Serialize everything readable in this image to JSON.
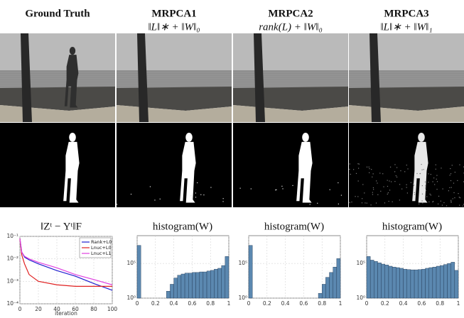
{
  "columns": [
    {
      "title": "Ground Truth"
    },
    {
      "title": "MRPCA1",
      "formula": "‖L‖∗ + ‖W‖₀"
    },
    {
      "title": "MRPCA2",
      "formula": "rank(L) + ‖W‖₀"
    },
    {
      "title": "MRPCA3",
      "formula": "‖L‖∗ + ‖W‖₁"
    }
  ],
  "chart_data": [
    {
      "type": "line",
      "title": "‖Zᵗ − Yᵗ‖F",
      "x_label": "iteration",
      "x": [
        0,
        2,
        5,
        10,
        20,
        40,
        60,
        80,
        100
      ],
      "series": [
        {
          "name": "Rank+L0",
          "color": "#1f1fd0",
          "values": [
            0.08,
            0.02,
            0.012,
            0.009,
            0.006,
            0.003,
            0.0017,
            0.0008,
            0.0004
          ]
        },
        {
          "name": "Lnuc+L0",
          "color": "#e02020",
          "values": [
            0.08,
            0.015,
            0.006,
            0.002,
            0.001,
            0.0007,
            0.0006,
            0.0006,
            0.0006
          ]
        },
        {
          "name": "Lnuc+L1",
          "color": "#e040e0",
          "values": [
            0.08,
            0.02,
            0.013,
            0.01,
            0.007,
            0.004,
            0.002,
            0.0012,
            0.0007
          ]
        }
      ],
      "xlim": [
        0,
        100
      ],
      "xticks": [
        0,
        20,
        40,
        60,
        80,
        100
      ],
      "ylim": [
        0.0001,
        0.1
      ],
      "yticks": [
        {
          "value": 0.0001,
          "label": "10⁻⁴"
        },
        {
          "value": 0.001,
          "label": "10⁻³"
        },
        {
          "value": 0.01,
          "label": "10⁻²"
        },
        {
          "value": 0.1,
          "label": "10⁻¹"
        }
      ],
      "log_y": true,
      "grid": true,
      "legend": "upper right"
    },
    {
      "type": "histogram",
      "title": "histogram(W)",
      "color": "#5b88b0",
      "bins": [
        0,
        0.04,
        0.08,
        0.12,
        0.16,
        0.2,
        0.24,
        0.28,
        0.32,
        0.36,
        0.4,
        0.44,
        0.48,
        0.52,
        0.56,
        0.6,
        0.64,
        0.68,
        0.72,
        0.76,
        0.8,
        0.84,
        0.88,
        0.92,
        0.96,
        1
      ],
      "values": [
        40000000,
        0,
        0,
        0,
        0,
        0,
        0,
        0,
        10,
        100,
        800,
        2000,
        3000,
        4000,
        4000,
        5000,
        5000,
        6000,
        6000,
        8000,
        10000,
        15000,
        20000,
        50000,
        1000000
      ],
      "xlim": [
        0,
        1
      ],
      "xticks": [
        0,
        0.2,
        0.4,
        0.6,
        0.8,
        1
      ],
      "ylim": [
        1,
        1000000000
      ],
      "yticks": [
        {
          "value": 1,
          "label": "10⁰"
        },
        {
          "value": 100000,
          "label": "10⁵"
        }
      ],
      "log_y": true,
      "grid": true
    },
    {
      "type": "histogram",
      "title": "histogram(W)",
      "color": "#5b88b0",
      "bins": [
        0,
        0.04,
        0.08,
        0.12,
        0.16,
        0.2,
        0.24,
        0.28,
        0.32,
        0.36,
        0.4,
        0.44,
        0.48,
        0.52,
        0.56,
        0.6,
        0.64,
        0.68,
        0.72,
        0.76,
        0.8,
        0.84,
        0.88,
        0.92,
        0.96,
        1
      ],
      "values": [
        40000000,
        0,
        0,
        0,
        0,
        0,
        0,
        0,
        0,
        0,
        0,
        0,
        0,
        0,
        0,
        0,
        0,
        0,
        0,
        5,
        100,
        1000,
        5000,
        30000,
        500000
      ],
      "xlim": [
        0,
        1
      ],
      "xticks": [
        0,
        0.2,
        0.4,
        0.6,
        0.8,
        1
      ],
      "ylim": [
        1,
        1000000000
      ],
      "yticks": [
        {
          "value": 1,
          "label": "10⁰"
        },
        {
          "value": 100000,
          "label": "10⁵"
        }
      ],
      "log_y": true,
      "grid": true
    },
    {
      "type": "histogram",
      "title": "histogram(W)",
      "color": "#5b88b0",
      "bins": [
        0,
        0.04,
        0.08,
        0.12,
        0.16,
        0.2,
        0.24,
        0.28,
        0.32,
        0.36,
        0.4,
        0.44,
        0.48,
        0.52,
        0.56,
        0.6,
        0.64,
        0.68,
        0.72,
        0.76,
        0.8,
        0.84,
        0.88,
        0.92,
        0.96,
        1
      ],
      "values": [
        1000000,
        300000,
        200000,
        120000,
        80000,
        60000,
        40000,
        30000,
        25000,
        20000,
        15000,
        13000,
        12000,
        12000,
        13000,
        15000,
        20000,
        25000,
        30000,
        40000,
        50000,
        70000,
        100000,
        150000,
        10000
      ],
      "xlim": [
        0,
        1
      ],
      "xticks": [
        0,
        0.2,
        0.4,
        0.6,
        0.8,
        1
      ],
      "ylim": [
        1,
        1000000000
      ],
      "yticks": [
        {
          "value": 1,
          "label": "10⁰"
        },
        {
          "value": 100000,
          "label": "10⁵"
        }
      ],
      "log_y": true,
      "grid": true
    }
  ]
}
